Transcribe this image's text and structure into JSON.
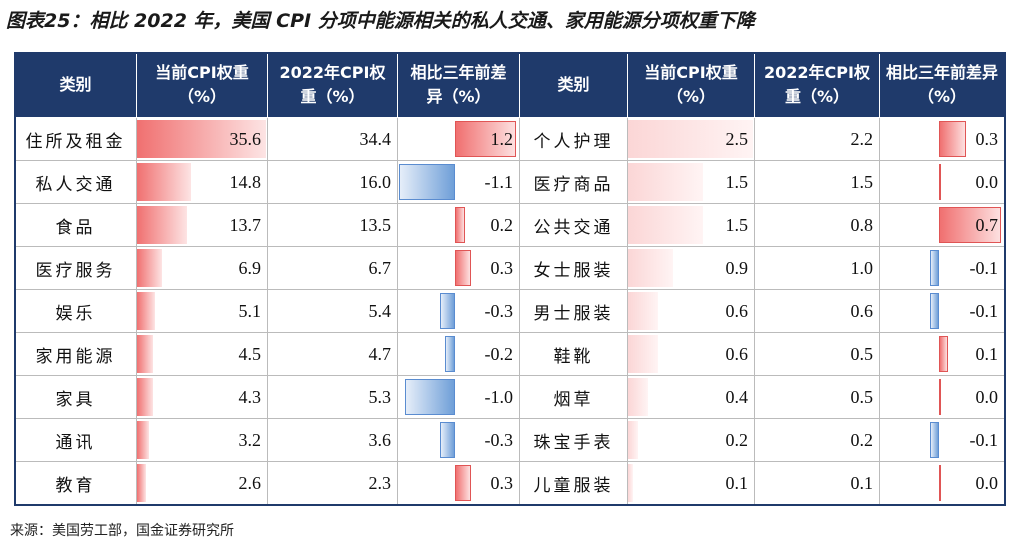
{
  "title": "图表25：相比 2022 年，美国 CPI 分项中能源相关的私人交通、家用能源分项权重下降",
  "table": {
    "headers": [
      "类别",
      "当前CPI权重（%）",
      "2022年CPI权重（%）",
      "相比三年前差异（%）",
      "类别",
      "当前CPI权重（%）",
      "2022年CPI权重（%）",
      "相比三年前差异（%）"
    ],
    "rows": [
      [
        "住所及租金",
        "35.6",
        "34.4",
        "1.2",
        "个人护理",
        "2.5",
        "2.2",
        "0.3"
      ],
      [
        "私人交通",
        "14.8",
        "16.0",
        "-1.1",
        "医疗商品",
        "1.5",
        "1.5",
        "0.0"
      ],
      [
        "食品",
        "13.7",
        "13.5",
        "0.2",
        "公共交通",
        "1.5",
        "0.8",
        "0.7"
      ],
      [
        "医疗服务",
        "6.9",
        "6.7",
        "0.3",
        "女士服装",
        "0.9",
        "1.0",
        "-0.1"
      ],
      [
        "娱乐",
        "5.1",
        "5.4",
        "-0.3",
        "男士服装",
        "0.6",
        "0.6",
        "-0.1"
      ],
      [
        "家用能源",
        "4.5",
        "4.7",
        "-0.2",
        "鞋靴",
        "0.6",
        "0.5",
        "0.1"
      ],
      [
        "家具",
        "4.3",
        "5.3",
        "-1.0",
        "烟草",
        "0.4",
        "0.5",
        "0.0"
      ],
      [
        "通讯",
        "3.2",
        "3.6",
        "-0.3",
        "珠宝手表",
        "0.2",
        "0.2",
        "-0.1"
      ],
      [
        "教育",
        "2.6",
        "2.3",
        "0.3",
        "儿童服装",
        "0.1",
        "0.1",
        "0.0"
      ]
    ]
  },
  "source": "来源：美国劳工部，国金证券研究所"
}
